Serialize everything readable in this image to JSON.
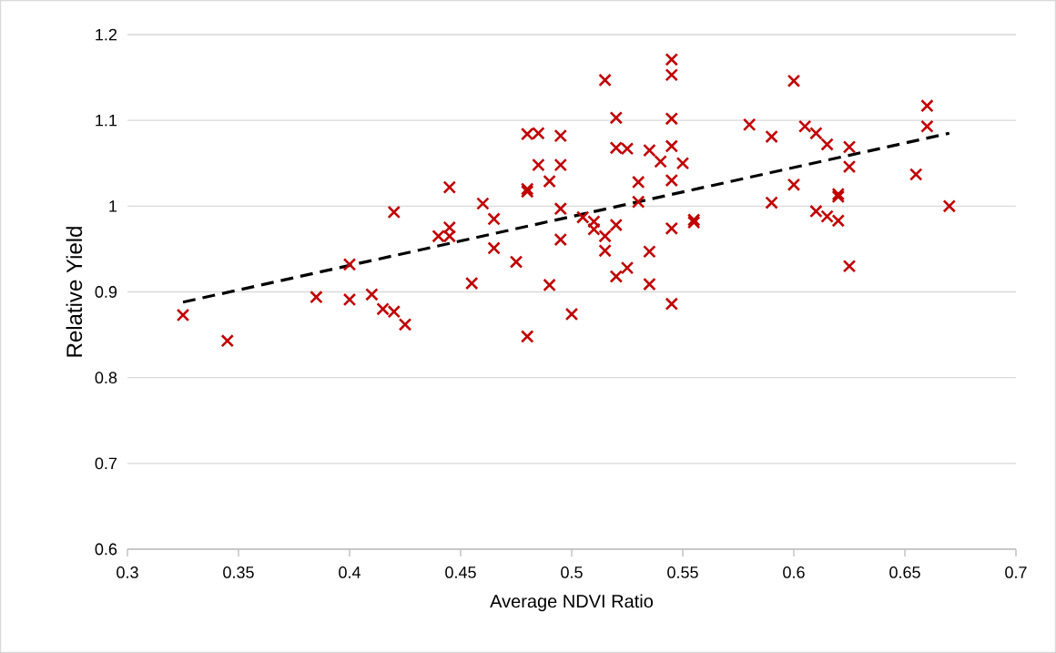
{
  "chart_data": {
    "type": "scatter",
    "xlabel": "Average NDVI Ratio",
    "ylabel": "Relative Yield",
    "xlim": [
      0.3,
      0.7
    ],
    "xticks": [
      0.3,
      0.35,
      0.4,
      0.45,
      0.5,
      0.55,
      0.6,
      0.65,
      0.7
    ],
    "ylim": [
      0.6,
      1.2
    ],
    "yticks": [
      0.6,
      0.7,
      0.8,
      0.9,
      1,
      1.1,
      1.2
    ],
    "grid": "y",
    "series": [
      {
        "color": "#c00000",
        "marker": "cross",
        "x": [
          0.325,
          0.345,
          0.385,
          0.4,
          0.4,
          0.41,
          0.415,
          0.42,
          0.42,
          0.425,
          0.44,
          0.445,
          0.445,
          0.445,
          0.455,
          0.46,
          0.465,
          0.465,
          0.475,
          0.48,
          0.48,
          0.48,
          0.48,
          0.485,
          0.485,
          0.49,
          0.49,
          0.495,
          0.495,
          0.495,
          0.495,
          0.5,
          0.505,
          0.51,
          0.51,
          0.515,
          0.515,
          0.515,
          0.52,
          0.52,
          0.52,
          0.52,
          0.525,
          0.525,
          0.53,
          0.53,
          0.535,
          0.535,
          0.535,
          0.54,
          0.545,
          0.545,
          0.545,
          0.545,
          0.545,
          0.545,
          0.545,
          0.55,
          0.555,
          0.555,
          0.58,
          0.59,
          0.59,
          0.6,
          0.6,
          0.605,
          0.61,
          0.61,
          0.615,
          0.615,
          0.62,
          0.62,
          0.62,
          0.625,
          0.625,
          0.625,
          0.655,
          0.66,
          0.66,
          0.67
        ],
        "values": [
          0.873,
          0.843,
          0.894,
          0.932,
          0.891,
          0.897,
          0.88,
          0.877,
          0.993,
          0.862,
          0.965,
          0.975,
          0.965,
          1.022,
          0.91,
          1.003,
          0.985,
          0.951,
          0.935,
          1.084,
          1.02,
          1.017,
          0.848,
          1.085,
          1.048,
          1.029,
          0.908,
          1.082,
          1.048,
          0.997,
          0.961,
          0.874,
          0.987,
          0.982,
          0.973,
          1.147,
          0.965,
          0.948,
          1.103,
          1.068,
          0.978,
          0.918,
          1.067,
          0.928,
          1.028,
          1.005,
          1.065,
          0.947,
          0.909,
          1.052,
          1.171,
          1.153,
          1.102,
          1.07,
          1.03,
          0.974,
          0.886,
          1.05,
          0.984,
          0.981,
          1.095,
          1.081,
          1.004,
          1.146,
          1.025,
          1.093,
          1.085,
          0.994,
          1.072,
          0.988,
          1.014,
          1.011,
          0.983,
          1.069,
          1.046,
          0.93,
          1.037,
          1.117,
          1.093,
          1.0
        ]
      },
      {
        "type": "line",
        "color": "#000000",
        "line_style": "dashed",
        "marker": "none",
        "x": [
          0.325,
          0.67
        ],
        "values": [
          0.888,
          1.085
        ]
      }
    ]
  }
}
